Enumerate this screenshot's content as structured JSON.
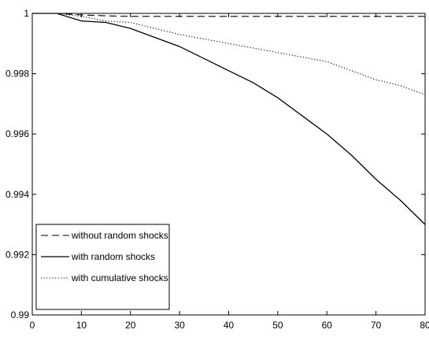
{
  "chart_data": {
    "type": "line",
    "title": "",
    "xlabel": "",
    "ylabel": "",
    "xlim": [
      0,
      80
    ],
    "ylim": [
      0.99,
      1.0
    ],
    "x_ticks": [
      0,
      10,
      20,
      30,
      40,
      50,
      60,
      70,
      80
    ],
    "x_tick_labels": [
      "0",
      "10",
      "20",
      "30",
      "40",
      "50",
      "60",
      "70",
      "80"
    ],
    "y_ticks": [
      0.99,
      0.992,
      0.994,
      0.996,
      0.998,
      1.0
    ],
    "y_tick_labels": [
      "0.99",
      "0.992",
      "0.994",
      "0.996",
      "0.998",
      "1"
    ],
    "grid": false,
    "legend_position": "bottom-left",
    "series": [
      {
        "name": "without random shocks",
        "style": "dashed",
        "color": "#000000",
        "x": [
          0,
          5,
          10,
          15,
          20,
          30,
          40,
          50,
          60,
          70,
          80
        ],
        "y": [
          1.0,
          1.0,
          0.99995,
          0.99992,
          0.9999,
          0.9999,
          0.9999,
          0.9999,
          0.9999,
          0.9999,
          0.9999
        ]
      },
      {
        "name": "with random shocks",
        "style": "solid",
        "color": "#000000",
        "x": [
          0,
          5,
          10,
          15,
          20,
          25,
          30,
          35,
          40,
          45,
          50,
          55,
          60,
          65,
          70,
          75,
          80
        ],
        "y": [
          1.0,
          1.0,
          0.99975,
          0.9997,
          0.9995,
          0.9992,
          0.9989,
          0.9985,
          0.9981,
          0.9977,
          0.9972,
          0.9966,
          0.996,
          0.9953,
          0.9945,
          0.9938,
          0.993
        ]
      },
      {
        "name": "with cumulative shocks",
        "style": "dotted",
        "color": "#000000",
        "x": [
          0,
          5,
          10,
          15,
          20,
          25,
          30,
          35,
          40,
          45,
          50,
          55,
          60,
          65,
          70,
          75,
          80
        ],
        "y": [
          1.0,
          1.0,
          0.9999,
          0.99975,
          0.9997,
          0.9995,
          0.9993,
          0.99915,
          0.999,
          0.99885,
          0.9987,
          0.99855,
          0.9984,
          0.9981,
          0.9978,
          0.9976,
          0.9973
        ]
      }
    ]
  }
}
